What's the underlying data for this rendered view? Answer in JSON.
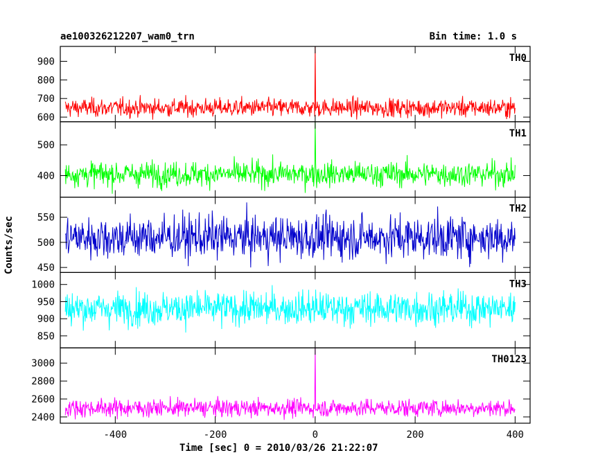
{
  "chart_data": {
    "type": "line",
    "title": "ae100326212207_wam0_trn",
    "subtitle": "Bin time: 1.0 s",
    "xlabel": "Time [sec] 0 = 2010/03/26 21:22:07",
    "ylabel": "Counts/sec",
    "xlim": [
      -510,
      430
    ],
    "xticks": [
      -400,
      -200,
      0,
      200,
      400
    ],
    "x_range": [
      -500,
      400
    ],
    "bin_time": 1.0,
    "grid": false,
    "panels": [
      {
        "name": "TH0",
        "color": "#ff0000",
        "ylim": [
          575,
          980
        ],
        "yticks": [
          600,
          700,
          800,
          900
        ],
        "mean": 650,
        "amp": 55,
        "spike": {
          "x": 0,
          "y": 980
        }
      },
      {
        "name": "TH1",
        "color": "#00ff00",
        "ylim": [
          330,
          575
        ],
        "yticks": [
          400,
          500
        ],
        "mean": 405,
        "amp": 45,
        "spike": {
          "x": 0,
          "y": 575
        }
      },
      {
        "name": "TH2",
        "color": "#0000cc",
        "ylim": [
          440,
          590
        ],
        "yticks": [
          450,
          500,
          550
        ],
        "mean": 510,
        "amp": 48,
        "spike": null
      },
      {
        "name": "TH3",
        "color": "#00ffff",
        "ylim": [
          815,
          1035
        ],
        "yticks": [
          850,
          900,
          950,
          1000
        ],
        "mean": 930,
        "amp": 55,
        "spike": null
      },
      {
        "name": "TH0123",
        "color": "#ff00ff",
        "ylim": [
          2330,
          3170
        ],
        "yticks": [
          2400,
          2600,
          2800,
          3000
        ],
        "mean": 2500,
        "amp": 110,
        "spike": {
          "x": 0,
          "y": 3170
        }
      }
    ]
  }
}
